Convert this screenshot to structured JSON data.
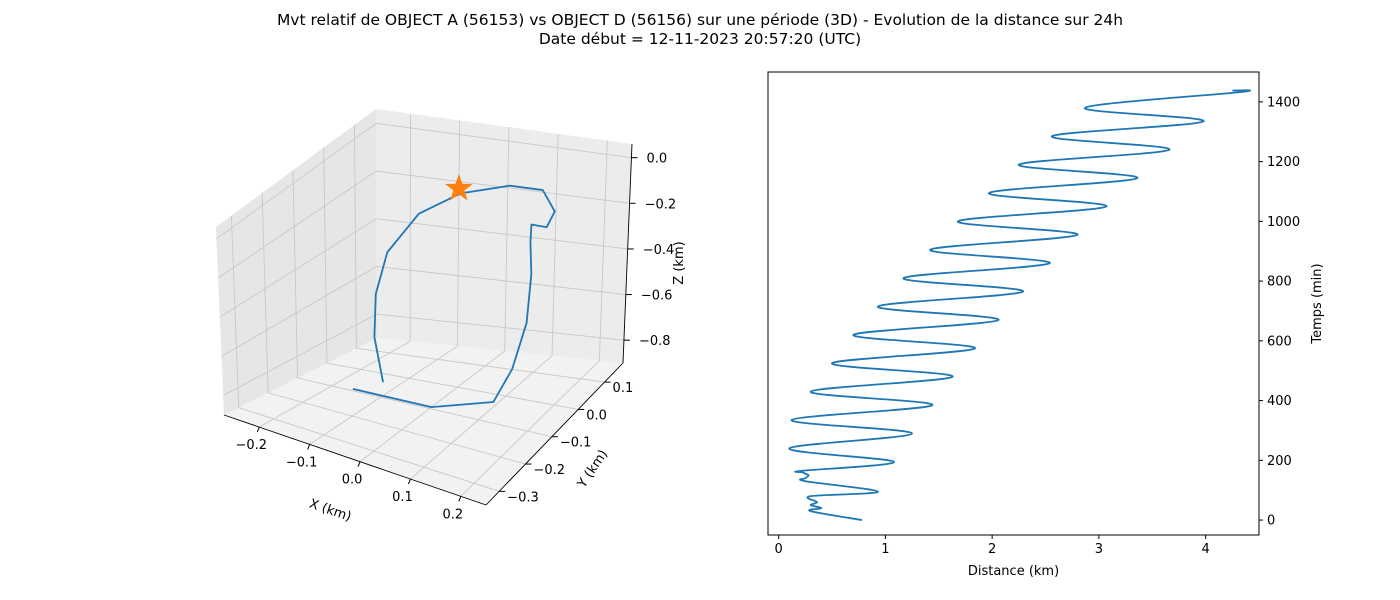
{
  "title": {
    "line1": "Mvt relatif de OBJECT A (56153) vs OBJECT D (56156) sur une période (3D) - Evolution de la distance sur 24h",
    "line2": "Date début = 12-11-2023 20:57:20 (UTC)"
  },
  "chart_data": [
    {
      "type": "line3d",
      "panel": "left",
      "xlabel": "X (km)",
      "ylabel": "Y (km)",
      "zlabel": "Z (km)",
      "xticks": [
        "−0.2",
        "−0.1",
        "0.0",
        "0.1",
        "0.2"
      ],
      "yticks": [
        "−0.3",
        "−0.2",
        "−0.1",
        "0.0",
        "0.1"
      ],
      "zticks": [
        "0.0",
        "−0.2",
        "−0.4",
        "−0.6",
        "−0.8"
      ],
      "grid": true,
      "series": [
        {
          "color": "#1f77b4",
          "points": [
            [
              -0.04,
              -0.3,
              -0.62
            ],
            [
              0.06,
              -0.2,
              -0.75
            ],
            [
              0.13,
              -0.1,
              -0.8
            ],
            [
              0.14,
              -0.05,
              -0.7
            ],
            [
              0.14,
              0.0,
              -0.55
            ],
            [
              0.12,
              0.05,
              -0.4
            ],
            [
              0.1,
              0.08,
              -0.3
            ],
            [
              0.09,
              0.1,
              -0.25
            ],
            [
              0.11,
              0.12,
              -0.28
            ],
            [
              0.12,
              0.13,
              -0.22
            ],
            [
              0.1,
              0.12,
              -0.12
            ],
            [
              0.05,
              0.09,
              -0.08
            ],
            [
              -0.02,
              0.04,
              -0.08
            ],
            [
              -0.08,
              0.0,
              -0.15
            ],
            [
              -0.12,
              -0.04,
              -0.3
            ],
            [
              -0.12,
              -0.08,
              -0.45
            ],
            [
              -0.1,
              -0.12,
              -0.6
            ],
            [
              -0.06,
              -0.16,
              -0.75
            ]
          ]
        },
        {
          "marker": "star",
          "color": "#ff7f0e",
          "points": [
            [
              0.0,
              0.0,
              0.0
            ]
          ]
        }
      ]
    },
    {
      "type": "line",
      "panel": "right",
      "xlabel": "Distance (km)",
      "ylabel": "Temps (min)",
      "xlim": [
        -0.1,
        4.5
      ],
      "ylim": [
        -50,
        1500
      ],
      "xticks": [
        0,
        1,
        2,
        3,
        4
      ],
      "yticks": [
        0,
        200,
        400,
        600,
        800,
        1000,
        1200,
        1400
      ],
      "series": [
        {
          "color": "#1f77b4",
          "points": [
            [
              0.78,
              0
            ],
            [
              0.3,
              30
            ],
            [
              0.4,
              40
            ],
            [
              0.3,
              50
            ],
            [
              0.36,
              60
            ],
            [
              0.3,
              80
            ],
            [
              0.93,
              95
            ],
            [
              0.25,
              130
            ],
            [
              0.25,
              140
            ],
            [
              0.28,
              150
            ],
            [
              0.22,
              160
            ],
            [
              0.22,
              165
            ],
            [
              1.08,
              195
            ],
            [
              0.1,
              240
            ],
            [
              1.25,
              290
            ],
            [
              0.12,
              335
            ],
            [
              1.44,
              385
            ],
            [
              0.3,
              430
            ],
            [
              1.63,
              480
            ],
            [
              0.5,
              525
            ],
            [
              1.84,
              575
            ],
            [
              0.7,
              620
            ],
            [
              2.06,
              670
            ],
            [
              0.93,
              715
            ],
            [
              2.29,
              765
            ],
            [
              1.17,
              810
            ],
            [
              2.54,
              860
            ],
            [
              1.42,
              905
            ],
            [
              2.8,
              955
            ],
            [
              1.68,
              1000
            ],
            [
              3.07,
              1050
            ],
            [
              1.97,
              1095
            ],
            [
              3.36,
              1145
            ],
            [
              2.25,
              1190
            ],
            [
              3.66,
              1240
            ],
            [
              2.56,
              1285
            ],
            [
              3.98,
              1335
            ],
            [
              2.87,
              1380
            ],
            [
              4.33,
              1433
            ],
            [
              4.25,
              1438
            ]
          ]
        }
      ]
    }
  ]
}
